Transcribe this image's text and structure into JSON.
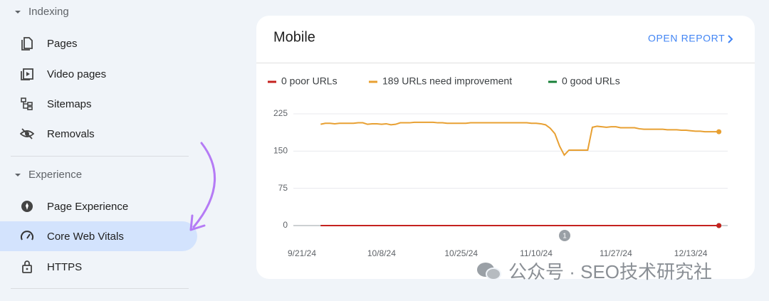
{
  "sidebar": {
    "sections": [
      {
        "title": "Indexing",
        "items": [
          "Pages",
          "Video pages",
          "Sitemaps",
          "Removals"
        ]
      },
      {
        "title": "Experience",
        "items": [
          "Page Experience",
          "Core Web Vitals",
          "HTTPS"
        ]
      }
    ]
  },
  "card": {
    "title": "Mobile",
    "action": "OPEN REPORT"
  },
  "watermark": "公众号 · SEO技术研究社",
  "chart_data": {
    "type": "line",
    "categories": [
      "9/21/24",
      null,
      null,
      null,
      null,
      null,
      null,
      null,
      null,
      null,
      null,
      null,
      null,
      null,
      null,
      null,
      null,
      "10/8/24",
      null,
      null,
      null,
      null,
      null,
      null,
      null,
      null,
      null,
      null,
      null,
      null,
      null,
      null,
      null,
      null,
      "10/25/24",
      null,
      null,
      null,
      null,
      null,
      null,
      null,
      null,
      null,
      null,
      null,
      null,
      null,
      null,
      null,
      "11/10/24",
      null,
      null,
      null,
      null,
      null,
      null,
      null,
      null,
      null,
      null,
      null,
      null,
      null,
      null,
      null,
      null,
      "11/27/24",
      null,
      null,
      null,
      null,
      null,
      null,
      null,
      null,
      null,
      null,
      null,
      null,
      null,
      null,
      null,
      "12/13/24",
      null,
      null,
      null,
      null,
      null,
      null
    ],
    "series": [
      {
        "name": "0 good URLs",
        "color": "#188038",
        "values": [
          null,
          null,
          null,
          null,
          0,
          0,
          0,
          0,
          0,
          0,
          0,
          0,
          0,
          0,
          0,
          0,
          0,
          0,
          0,
          0,
          0,
          0,
          0,
          0,
          0,
          0,
          0,
          0,
          0,
          0,
          0,
          0,
          0,
          0,
          0,
          0,
          0,
          0,
          0,
          0,
          0,
          0,
          0,
          0,
          0,
          0,
          0,
          0,
          0,
          0,
          0,
          0,
          0,
          0,
          0,
          0,
          0,
          0,
          0,
          0,
          0,
          0,
          0,
          0,
          0,
          0,
          0,
          0,
          0,
          0,
          0,
          0,
          0,
          0,
          0,
          0,
          0,
          0,
          0,
          0,
          0,
          0,
          0,
          0,
          0,
          0,
          0,
          0,
          0,
          0
        ]
      },
      {
        "name": "189 URLs need improvement",
        "color": "#e8a032",
        "values": [
          null,
          null,
          null,
          null,
          204,
          206,
          206,
          205,
          206,
          206,
          206,
          206,
          207,
          207,
          204,
          205,
          205,
          204,
          205,
          203,
          204,
          207,
          207,
          207,
          208,
          208,
          208,
          208,
          208,
          207,
          207,
          206,
          206,
          206,
          206,
          206,
          207,
          207,
          207,
          207,
          207,
          207,
          207,
          207,
          207,
          207,
          207,
          207,
          207,
          206,
          206,
          205,
          203,
          196,
          185,
          160,
          142,
          152,
          152,
          152,
          152,
          152,
          198,
          200,
          199,
          198,
          199,
          199,
          197,
          197,
          197,
          197,
          195,
          194,
          194,
          194,
          194,
          194,
          193,
          193,
          193,
          192,
          192,
          191,
          190,
          190,
          189,
          189,
          189,
          189
        ]
      },
      {
        "name": "0 poor URLs",
        "color": "#c5221f",
        "values": [
          null,
          null,
          null,
          null,
          0,
          0,
          0,
          0,
          0,
          0,
          0,
          0,
          0,
          0,
          0,
          0,
          0,
          0,
          0,
          0,
          0,
          0,
          0,
          0,
          0,
          0,
          0,
          0,
          0,
          0,
          0,
          0,
          0,
          0,
          0,
          0,
          0,
          0,
          0,
          0,
          0,
          0,
          0,
          0,
          0,
          0,
          0,
          0,
          0,
          0,
          0,
          0,
          0,
          0,
          0,
          0,
          0,
          0,
          0,
          0,
          0,
          0,
          0,
          0,
          0,
          0,
          0,
          0,
          0,
          0,
          0,
          0,
          0,
          0,
          0,
          0,
          0,
          0,
          0,
          0,
          0,
          0,
          0,
          0,
          0,
          0,
          0,
          0,
          0,
          0
        ]
      }
    ],
    "legend_order": [
      2,
      1,
      0
    ],
    "annotation": "1",
    "ylim": [
      0,
      225
    ],
    "yticks": [
      0,
      75,
      150,
      225
    ],
    "grid": true
  }
}
